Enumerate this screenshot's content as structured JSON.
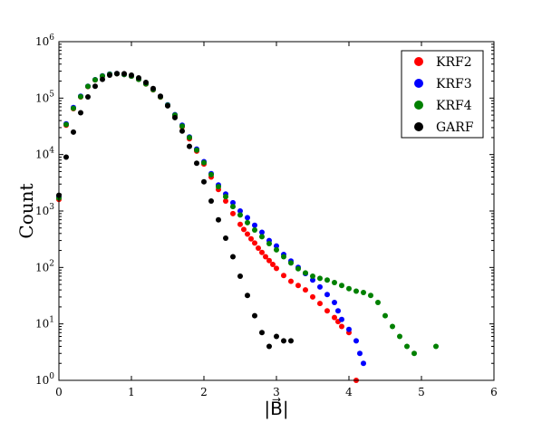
{
  "chart_data": {
    "type": "scatter",
    "xlabel": "|B⃗|",
    "ylabel": "Count",
    "xlim": [
      0,
      6
    ],
    "ylim": [
      1,
      1000000
    ],
    "yscale": "log",
    "xticks": [
      "0",
      "1",
      "2",
      "3",
      "4",
      "5",
      "6"
    ],
    "yticks": [
      {
        "base": "10",
        "exp": "0"
      },
      {
        "base": "10",
        "exp": "1"
      },
      {
        "base": "10",
        "exp": "2"
      },
      {
        "base": "10",
        "exp": "3"
      },
      {
        "base": "10",
        "exp": "4"
      },
      {
        "base": "10",
        "exp": "5"
      },
      {
        "base": "10",
        "exp": "6"
      }
    ],
    "grid": false,
    "legend_position": "top-right",
    "series": [
      {
        "name": "KRF2",
        "color": "#ff0000",
        "points": [
          [
            0.0,
            1600
          ],
          [
            0.1,
            33000
          ],
          [
            0.2,
            65000
          ],
          [
            0.3,
            105000
          ],
          [
            0.4,
            160000
          ],
          [
            0.5,
            210000
          ],
          [
            0.6,
            245000
          ],
          [
            0.7,
            265000
          ],
          [
            0.8,
            270000
          ],
          [
            0.9,
            262000
          ],
          [
            1.0,
            245000
          ],
          [
            1.1,
            215000
          ],
          [
            1.2,
            178000
          ],
          [
            1.3,
            140000
          ],
          [
            1.4,
            104000
          ],
          [
            1.5,
            74000
          ],
          [
            1.6,
            49000
          ],
          [
            1.7,
            31000
          ],
          [
            1.8,
            19000
          ],
          [
            1.9,
            11500
          ],
          [
            2.0,
            6800
          ],
          [
            2.1,
            4000
          ],
          [
            2.2,
            2400
          ],
          [
            2.3,
            1500
          ],
          [
            2.4,
            900
          ],
          [
            2.5,
            580
          ],
          [
            2.55,
            470
          ],
          [
            2.6,
            390
          ],
          [
            2.65,
            320
          ],
          [
            2.7,
            270
          ],
          [
            2.75,
            220
          ],
          [
            2.8,
            185
          ],
          [
            2.85,
            155
          ],
          [
            2.9,
            132
          ],
          [
            2.95,
            113
          ],
          [
            3.0,
            96
          ],
          [
            3.1,
            72
          ],
          [
            3.2,
            57
          ],
          [
            3.3,
            48
          ],
          [
            3.4,
            40
          ],
          [
            3.5,
            30
          ],
          [
            3.6,
            23
          ],
          [
            3.7,
            17
          ],
          [
            3.8,
            13
          ],
          [
            3.85,
            11
          ],
          [
            3.9,
            9
          ],
          [
            4.0,
            7
          ],
          [
            4.1,
            1
          ]
        ]
      },
      {
        "name": "KRF3",
        "color": "#0000ff",
        "points": [
          [
            0.0,
            1800
          ],
          [
            0.1,
            35000
          ],
          [
            0.2,
            68000
          ],
          [
            0.3,
            108000
          ],
          [
            0.4,
            162000
          ],
          [
            0.5,
            212000
          ],
          [
            0.6,
            248000
          ],
          [
            0.7,
            266000
          ],
          [
            0.8,
            271000
          ],
          [
            0.9,
            263000
          ],
          [
            1.0,
            246000
          ],
          [
            1.1,
            216000
          ],
          [
            1.2,
            180000
          ],
          [
            1.3,
            142000
          ],
          [
            1.4,
            106000
          ],
          [
            1.5,
            76000
          ],
          [
            1.6,
            51000
          ],
          [
            1.7,
            33000
          ],
          [
            1.8,
            20500
          ],
          [
            1.9,
            12500
          ],
          [
            2.0,
            7500
          ],
          [
            2.1,
            4600
          ],
          [
            2.2,
            2900
          ],
          [
            2.3,
            2000
          ],
          [
            2.4,
            1400
          ],
          [
            2.5,
            1000
          ],
          [
            2.6,
            760
          ],
          [
            2.7,
            560
          ],
          [
            2.8,
            420
          ],
          [
            2.9,
            300
          ],
          [
            3.0,
            240
          ],
          [
            3.1,
            170
          ],
          [
            3.2,
            130
          ],
          [
            3.3,
            100
          ],
          [
            3.4,
            78
          ],
          [
            3.5,
            60
          ],
          [
            3.6,
            45
          ],
          [
            3.7,
            33
          ],
          [
            3.8,
            24
          ],
          [
            3.85,
            17
          ],
          [
            3.9,
            12
          ],
          [
            4.0,
            8
          ],
          [
            4.1,
            5
          ],
          [
            4.15,
            3
          ],
          [
            4.2,
            2
          ]
        ]
      },
      {
        "name": "KRF4",
        "color": "#008000",
        "points": [
          [
            0.0,
            1700
          ],
          [
            0.1,
            34000
          ],
          [
            0.2,
            66000
          ],
          [
            0.3,
            106000
          ],
          [
            0.4,
            161000
          ],
          [
            0.5,
            211000
          ],
          [
            0.6,
            246000
          ],
          [
            0.7,
            265000
          ],
          [
            0.8,
            270000
          ],
          [
            0.9,
            262000
          ],
          [
            1.0,
            245000
          ],
          [
            1.1,
            215000
          ],
          [
            1.2,
            179000
          ],
          [
            1.3,
            141000
          ],
          [
            1.4,
            105000
          ],
          [
            1.5,
            75000
          ],
          [
            1.6,
            50000
          ],
          [
            1.7,
            32000
          ],
          [
            1.8,
            20000
          ],
          [
            1.9,
            12000
          ],
          [
            2.0,
            7200
          ],
          [
            2.1,
            4400
          ],
          [
            2.2,
            2700
          ],
          [
            2.3,
            1800
          ],
          [
            2.4,
            1200
          ],
          [
            2.5,
            850
          ],
          [
            2.6,
            620
          ],
          [
            2.7,
            460
          ],
          [
            2.8,
            350
          ],
          [
            2.9,
            265
          ],
          [
            3.0,
            205
          ],
          [
            3.1,
            155
          ],
          [
            3.2,
            120
          ],
          [
            3.3,
            95
          ],
          [
            3.4,
            80
          ],
          [
            3.5,
            70
          ],
          [
            3.6,
            64
          ],
          [
            3.7,
            60
          ],
          [
            3.8,
            54
          ],
          [
            3.9,
            48
          ],
          [
            4.0,
            42
          ],
          [
            4.1,
            38
          ],
          [
            4.2,
            36
          ],
          [
            4.3,
            32
          ],
          [
            4.4,
            24
          ],
          [
            4.5,
            14
          ],
          [
            4.6,
            9
          ],
          [
            4.7,
            6
          ],
          [
            4.8,
            4
          ],
          [
            4.9,
            3
          ],
          [
            5.2,
            4
          ]
        ]
      },
      {
        "name": "GARF",
        "color": "#000000",
        "points": [
          [
            0.0,
            1900
          ],
          [
            0.1,
            9000
          ],
          [
            0.2,
            25000
          ],
          [
            0.3,
            55000
          ],
          [
            0.4,
            105000
          ],
          [
            0.5,
            162000
          ],
          [
            0.6,
            215000
          ],
          [
            0.7,
            255000
          ],
          [
            0.8,
            272000
          ],
          [
            0.9,
            270000
          ],
          [
            1.0,
            255000
          ],
          [
            1.1,
            228000
          ],
          [
            1.2,
            190000
          ],
          [
            1.3,
            148000
          ],
          [
            1.4,
            108000
          ],
          [
            1.5,
            73000
          ],
          [
            1.6,
            45000
          ],
          [
            1.7,
            26000
          ],
          [
            1.8,
            14000
          ],
          [
            1.9,
            7000
          ],
          [
            2.0,
            3300
          ],
          [
            2.1,
            1500
          ],
          [
            2.2,
            700
          ],
          [
            2.3,
            330
          ],
          [
            2.4,
            155
          ],
          [
            2.5,
            70
          ],
          [
            2.6,
            32
          ],
          [
            2.7,
            14
          ],
          [
            2.8,
            7
          ],
          [
            2.9,
            4
          ],
          [
            3.0,
            6
          ],
          [
            3.1,
            5
          ],
          [
            3.2,
            5
          ]
        ]
      }
    ]
  }
}
